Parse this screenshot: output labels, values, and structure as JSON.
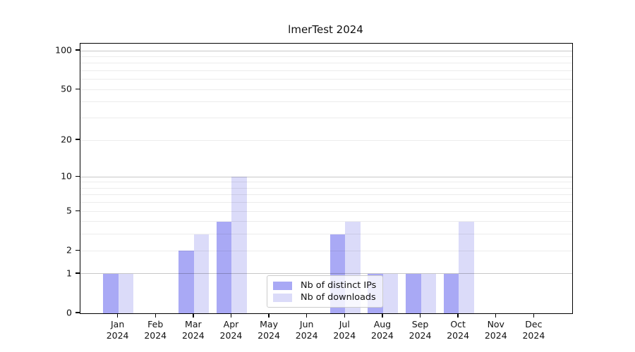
{
  "title": "lmerTest 2024",
  "chart_data": {
    "type": "bar",
    "title": "lmerTest 2024",
    "categories": [
      "Jan",
      "Feb",
      "Mar",
      "Apr",
      "May",
      "Jun",
      "Jul",
      "Aug",
      "Sep",
      "Oct",
      "Nov",
      "Dec"
    ],
    "year": "2024",
    "series": [
      {
        "name": "Nb of distinct IPs",
        "color": "#a9a9f5",
        "values": [
          1,
          0,
          2,
          4,
          0,
          0,
          3,
          1,
          1,
          1,
          0,
          0
        ]
      },
      {
        "name": "Nb of downloads",
        "color": "#dbdbf9",
        "values": [
          1,
          0,
          3,
          10,
          0,
          0,
          4,
          1,
          1,
          4,
          0,
          0
        ]
      }
    ],
    "y_ticks": [
      0,
      1,
      2,
      5,
      10,
      20,
      50,
      100
    ],
    "y_minor_gridlines": [
      2,
      3,
      4,
      5,
      6,
      7,
      8,
      9,
      20,
      30,
      40,
      50,
      60,
      70,
      80,
      90
    ],
    "y_major_gridlines": [
      1,
      10,
      100
    ],
    "scale": "log1p",
    "ylim": [
      0,
      113
    ],
    "grid": true,
    "legend_position": "bottom-center",
    "colors": {
      "axis": "#000000",
      "text": "#111111"
    }
  }
}
